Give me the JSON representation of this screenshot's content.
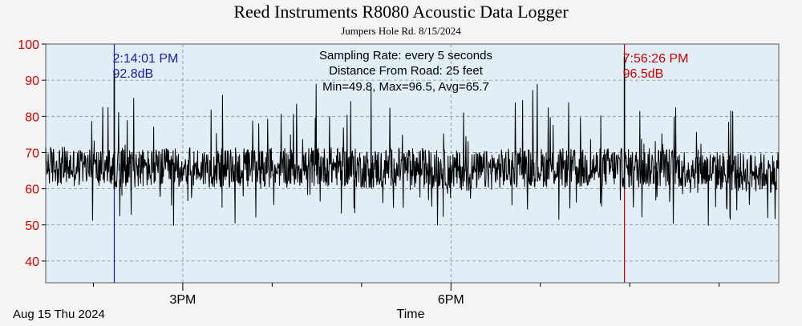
{
  "chart_data": {
    "type": "line",
    "title": "Reed Instruments R8080 Acoustic Data Logger",
    "subtitle": "Jumpers Hole Rd. 8/15/2024",
    "xlabel": "Time",
    "ylabel": "",
    "date_label": "Aug 15 Thu 2024",
    "ylim": [
      34,
      100
    ],
    "yticks": [
      40,
      50,
      60,
      70,
      80,
      90,
      100
    ],
    "xlim": [
      "13:28",
      "21:40"
    ],
    "xticks": [
      {
        "time": "15:00",
        "label": "3PM"
      },
      {
        "time": "18:00",
        "label": "6PM"
      }
    ],
    "x_minor_ticks": [
      "14:00",
      "16:00",
      "17:00",
      "19:00",
      "20:00",
      "21:00"
    ],
    "grid": true,
    "info": [
      "Sampling Rate: every 5 seconds",
      "Distance From Road: 25 feet",
      "Min=49.8, Max=96.5, Avg=65.7"
    ],
    "markers": [
      {
        "time": "2:14:01 PM",
        "time_24": "14:14:01",
        "value_label": "92.8dB",
        "value": 92.8,
        "color": "#1a1aa8"
      },
      {
        "time": "7:56:26 PM",
        "time_24": "19:56:26",
        "value_label": "96.5dB",
        "value": 96.5,
        "color": "#cc0000"
      }
    ],
    "series": [
      {
        "x": [
          "13:28",
          "13:46",
          "14:04",
          "14:22",
          "14:40",
          "14:58",
          "15:16",
          "15:34",
          "15:52",
          "16:10",
          "16:28",
          "16:46",
          "17:04",
          "17:22",
          "17:40",
          "17:58",
          "18:16",
          "18:34",
          "18:52",
          "19:10",
          "19:28",
          "19:46",
          "20:04",
          "20:22",
          "20:40",
          "20:58",
          "21:16",
          "21:34"
        ],
        "values": [
          66.5,
          66.0,
          65.5,
          66.0,
          65.5,
          66.0,
          65.8,
          65.5,
          66.0,
          65.7,
          66.2,
          66.0,
          65.5,
          66.0,
          65.8,
          65.3,
          64.8,
          65.5,
          66.0,
          65.8,
          65.5,
          66.0,
          65.5,
          66.0,
          65.5,
          65.0,
          64.5,
          64.5
        ],
        "color": "#000000"
      }
    ],
    "noise": {
      "min": 49.8,
      "max": 96.5,
      "avg": 65.7
    }
  },
  "colors": {
    "plot_bg": "#e3eff6",
    "axis_tick_text": "#d40000",
    "grid": "#8a8a8a"
  }
}
